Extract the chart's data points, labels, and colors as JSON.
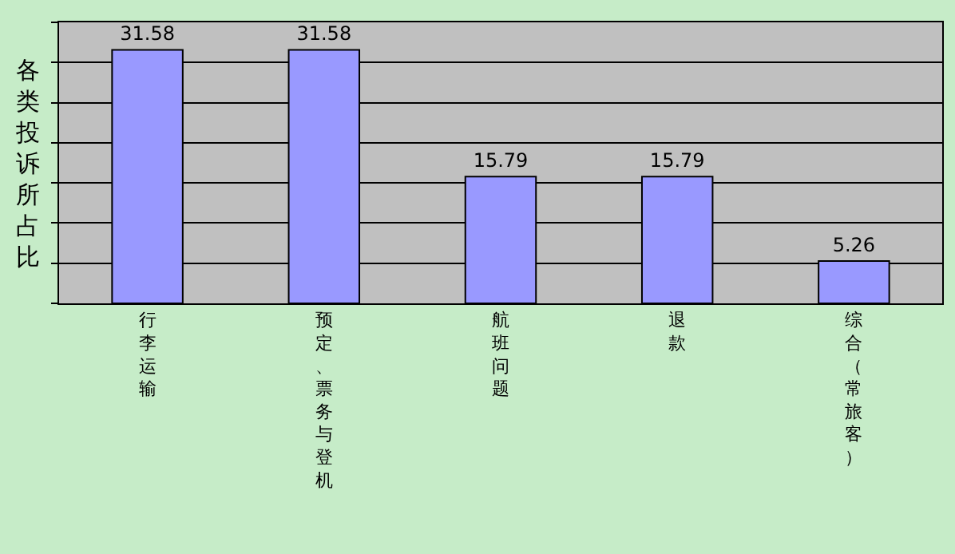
{
  "chart_data": {
    "type": "bar",
    "categories": [
      "行李运输",
      "预定、票务与登机",
      "航班问题",
      "退款",
      "综合（常旅客）"
    ],
    "values": [
      31.58,
      31.58,
      15.79,
      15.79,
      5.26
    ],
    "color": "#9999ff",
    "ylabel": "各类投诉所占比",
    "ylim": [
      0,
      35
    ],
    "yticks": [
      {
        "value": 0,
        "label": null
      },
      {
        "value": 5,
        "label": null
      },
      {
        "value": 10,
        "label": null
      },
      {
        "value": 15,
        "label": null
      },
      {
        "value": 20,
        "label": null
      },
      {
        "value": 25,
        "label": null
      },
      {
        "value": 30,
        "label": null
      },
      {
        "value": 35,
        "label": null
      }
    ],
    "tick_labels": "x",
    "grid": "y",
    "data_labels": true,
    "legend": false
  }
}
